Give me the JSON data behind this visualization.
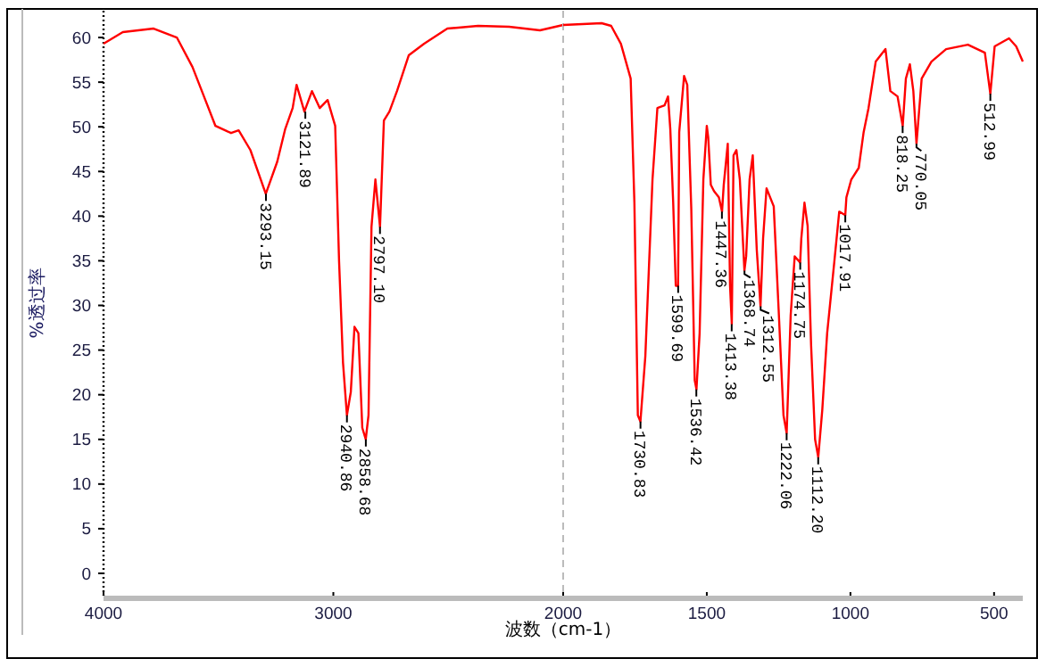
{
  "chart_data": [
    {
      "type": "line",
      "ylabel": "%透过率",
      "xlim": [
        4000,
        2000
      ],
      "ylim": [
        -2.5,
        63
      ],
      "xticks": [
        4000,
        3000,
        {
          "value": 2000,
          "label": null
        }
      ],
      "yticks": [
        0,
        5,
        10,
        15,
        20,
        25,
        30,
        35,
        40,
        45,
        50,
        55,
        60
      ],
      "grid": false,
      "line_style": "solid",
      "series": [
        {
          "color": "#ff0000",
          "x": [
            4000,
            3916,
            3782,
            3681,
            3613,
            3563,
            3513,
            3445,
            3412,
            3361,
            3294,
            3244,
            3210,
            3177,
            3160,
            3126,
            3093,
            3059,
            3025,
            2992,
            2975,
            2958,
            2941,
            2924,
            2908,
            2891,
            2874,
            2859,
            2847,
            2834,
            2817,
            2797,
            2780,
            2756,
            2723,
            2672,
            2605,
            2504,
            2370,
            2235,
            2101,
            2000
          ],
          "values": [
            59.3,
            60.6,
            61.0,
            60.0,
            56.7,
            53.4,
            50.1,
            49.3,
            49.6,
            47.4,
            42.5,
            46.1,
            49.7,
            52.1,
            54.7,
            51.7,
            54.0,
            52.1,
            53.0,
            50.1,
            34.9,
            23.6,
            17.7,
            20.3,
            27.6,
            26.9,
            16.3,
            15.0,
            17.7,
            38.8,
            44.1,
            38.8,
            50.7,
            51.7,
            54.0,
            58.0,
            59.3,
            61.0,
            61.3,
            61.2,
            60.8,
            61.4
          ]
        }
      ],
      "annotations": [
        {
          "text": "3293.15",
          "x": 3293.15,
          "y": 42.5
        },
        {
          "text": "3121.89",
          "x": 3121.89,
          "y": 51.7
        },
        {
          "text": "2940.86",
          "x": 2940.86,
          "y": 17.7
        },
        {
          "text": "2858.68",
          "x": 2858.68,
          "y": 15.0
        },
        {
          "text": "2797.10",
          "x": 2797.1,
          "y": 38.8
        }
      ]
    },
    {
      "type": "line",
      "xlabel": "波数（cm-1）",
      "xlim": [
        2000,
        400
      ],
      "ylim": [
        -2.5,
        63
      ],
      "xticks": [
        2000,
        1500,
        1000,
        500
      ],
      "tick_labels": "x",
      "grid": false,
      "line_style": "solid",
      "ref_lines": [
        {
          "axis": "x",
          "value": 2000,
          "color": "#bbbbbb",
          "line_style": "dashed"
        }
      ],
      "series": [
        {
          "color": "#ff0000",
          "x": [
            2000,
            1866,
            1833,
            1799,
            1765,
            1752,
            1740,
            1731,
            1714,
            1689,
            1672,
            1647,
            1635,
            1627,
            1617,
            1608,
            1600,
            1596,
            1579,
            1568,
            1554,
            1542,
            1536,
            1525,
            1512,
            1500,
            1495,
            1486,
            1475,
            1458,
            1447,
            1441,
            1427,
            1419,
            1413,
            1407,
            1397,
            1385,
            1369,
            1363,
            1351,
            1340,
            1326,
            1313,
            1304,
            1292,
            1267,
            1250,
            1233,
            1222,
            1208,
            1194,
            1175,
            1171,
            1160,
            1149,
            1137,
            1123,
            1112,
            1098,
            1081,
            1056,
            1039,
            1018,
            1014,
            997,
            971,
            954,
            937,
            912,
            878,
            861,
            836,
            818,
            807,
            793,
            781,
            770,
            752,
            718,
            667,
            591,
            532,
            513,
            498,
            448,
            423,
            400
          ],
          "values": [
            61.4,
            61.6,
            61.3,
            59.3,
            55.4,
            41.5,
            17.7,
            17.0,
            24.3,
            44.1,
            52.1,
            52.4,
            53.4,
            49.7,
            41.5,
            32.2,
            32.2,
            49.4,
            55.7,
            54.7,
            40.8,
            21.6,
            20.6,
            26.9,
            44.1,
            50.1,
            48.8,
            43.5,
            42.8,
            42.1,
            40.5,
            43.5,
            48.1,
            32.2,
            27.9,
            46.8,
            47.4,
            44.1,
            33.9,
            35.5,
            44.1,
            46.8,
            36.2,
            29.9,
            37.5,
            43.1,
            41.1,
            29.6,
            17.7,
            15.7,
            28.9,
            35.5,
            34.8,
            37.5,
            41.5,
            38.9,
            25.6,
            15.0,
            13.0,
            18.3,
            26.9,
            34.9,
            40.5,
            40.1,
            42.1,
            44.1,
            45.4,
            49.4,
            52.1,
            57.3,
            58.7,
            54.0,
            53.4,
            50.1,
            55.4,
            57.0,
            54.0,
            48.1,
            55.4,
            57.3,
            58.7,
            59.2,
            58.3,
            53.7,
            59.0,
            59.9,
            59.0,
            57.3
          ]
        }
      ],
      "annotations": [
        {
          "text": "1730.83",
          "x": 1730.83,
          "y": 17.0
        },
        {
          "text": "1599.69",
          "x": 1599.69,
          "y": 32.2
        },
        {
          "text": "1536.42",
          "x": 1536.42,
          "y": 20.6
        },
        {
          "text": "1447.36",
          "x": 1447.36,
          "y": 40.5
        },
        {
          "text": "1413.38",
          "x": 1413.38,
          "y": 27.9
        },
        {
          "text": "1368.74",
          "x": 1368.74,
          "y": 33.9
        },
        {
          "text": "1312.55",
          "x": 1312.55,
          "y": 29.9
        },
        {
          "text": "1222.06",
          "x": 1222.06,
          "y": 15.7
        },
        {
          "text": "1174.75",
          "x": 1174.75,
          "y": 34.8
        },
        {
          "text": "1112.20",
          "x": 1112.2,
          "y": 13.0
        },
        {
          "text": "1017.91",
          "x": 1017.91,
          "y": 40.1
        },
        {
          "text": "818.25",
          "x": 818.25,
          "y": 50.1
        },
        {
          "text": "770.05",
          "x": 770.05,
          "y": 48.1
        },
        {
          "text": "512.99",
          "x": 512.99,
          "y": 53.7
        }
      ]
    }
  ]
}
